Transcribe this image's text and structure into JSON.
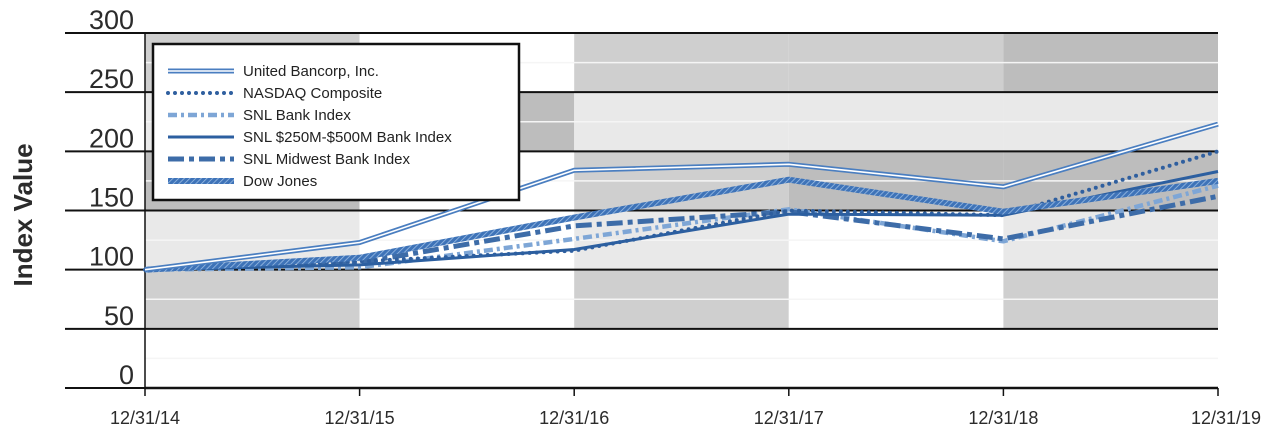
{
  "chart_data": {
    "type": "line",
    "title": "",
    "xlabel": "",
    "ylabel": "Index Value",
    "ylim": [
      0,
      300
    ],
    "yticks": [
      0,
      50,
      100,
      150,
      200,
      250,
      300
    ],
    "categories": [
      "12/31/14",
      "12/31/15",
      "12/31/16",
      "12/31/17",
      "12/31/18",
      "12/31/19"
    ],
    "grid": true,
    "legend_position": "top-left",
    "band_colors": [
      "#cfcfcf",
      "#e9e9e9",
      "#bdbdbd",
      "#ffffff"
    ],
    "series": [
      {
        "name": "United Bancorp, Inc.",
        "style": "double",
        "color": "#4a7ec0",
        "values": [
          100,
          123,
          184,
          189,
          170,
          223
        ]
      },
      {
        "name": "NASDAQ Composite",
        "style": "dotted",
        "color": "#2f5f9f",
        "values": [
          100,
          107,
          116,
          150,
          146,
          200
        ]
      },
      {
        "name": "SNL Bank Index",
        "style": "dashdot-light",
        "color": "#7ea6d6",
        "values": [
          100,
          102,
          126,
          151,
          124,
          171
        ]
      },
      {
        "name": "SNL $250M-$500M Bank Index",
        "style": "solid-dark",
        "color": "#2c5fa0",
        "values": [
          100,
          104,
          117,
          147,
          146,
          183
        ]
      },
      {
        "name": "SNL Midwest Bank Index",
        "style": "dashdot-heavy",
        "color": "#3d6ca8",
        "values": [
          100,
          106,
          137,
          149,
          126,
          162
        ]
      },
      {
        "name": "Dow Jones",
        "style": "hatched",
        "color": "#3e73b8",
        "values": [
          100,
          110,
          144,
          176,
          149,
          175
        ]
      }
    ]
  }
}
